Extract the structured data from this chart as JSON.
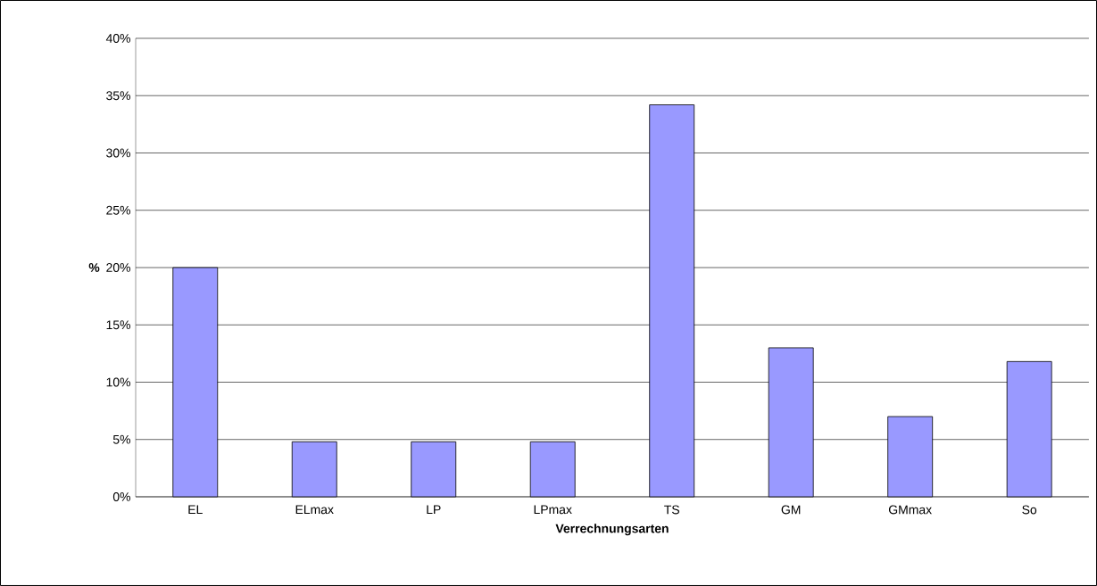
{
  "chart_data": {
    "type": "bar",
    "xlabel": "Verrechnungsarten",
    "ylabel": "%",
    "categories": [
      "EL",
      "ELmax",
      "LP",
      "LPmax",
      "TS",
      "GM",
      "GMmax",
      "So"
    ],
    "values": [
      20,
      4.8,
      4.8,
      4.8,
      34.2,
      13,
      7,
      11.8
    ],
    "color": "#9999ff",
    "ylim": [
      0,
      40
    ],
    "yticks": [
      {
        "value": 0,
        "label": "0%"
      },
      {
        "value": 5,
        "label": "5%"
      },
      {
        "value": 10,
        "label": "10%"
      },
      {
        "value": 15,
        "label": "15%"
      },
      {
        "value": 20,
        "label": "20%"
      },
      {
        "value": 25,
        "label": "25%"
      },
      {
        "value": 30,
        "label": "30%"
      },
      {
        "value": 35,
        "label": "35%"
      },
      {
        "value": 40,
        "label": "40%"
      }
    ],
    "grid": "y"
  }
}
